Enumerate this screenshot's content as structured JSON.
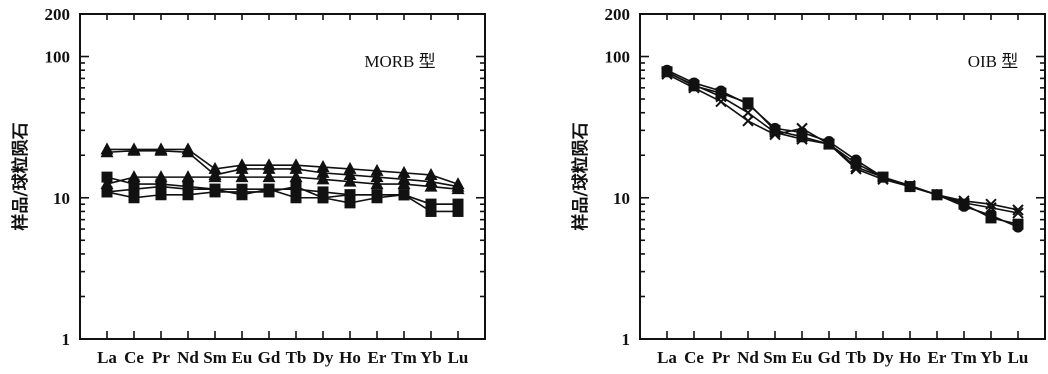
{
  "chart_data": [
    {
      "type": "line",
      "scale": "log",
      "title": "MORB 型",
      "ylabel": "样品/球粒陨石",
      "xlabel": "",
      "categories": [
        "La",
        "Ce",
        "Pr",
        "Nd",
        "Sm",
        "Eu",
        "Gd",
        "Tb",
        "Dy",
        "Ho",
        "Er",
        "Tm",
        "Yb",
        "Lu"
      ],
      "ylim": [
        1,
        200
      ],
      "yticks": [
        "1",
        "10",
        "100",
        "200"
      ],
      "series": [
        {
          "marker": "triangle",
          "values": [
            22,
            22,
            22,
            22,
            16,
            17,
            17,
            17,
            16.5,
            16,
            15.5,
            15,
            14.5,
            12.5
          ]
        },
        {
          "marker": "triangle",
          "values": [
            21,
            21.5,
            21.5,
            21,
            14.5,
            16,
            16,
            16,
            15,
            14.5,
            14,
            13.5,
            13,
            12
          ]
        },
        {
          "marker": "triangle",
          "values": [
            12.5,
            14,
            14,
            14,
            14,
            14,
            14,
            14,
            13.5,
            13,
            12.5,
            12.5,
            12,
            11.5
          ]
        },
        {
          "marker": "square",
          "values": [
            14,
            12.5,
            12.5,
            12,
            11.5,
            11.5,
            11.5,
            11.5,
            11,
            10.5,
            10.5,
            10.5,
            9,
            9
          ]
        },
        {
          "marker": "square",
          "values": [
            11,
            10,
            10.5,
            10.5,
            11,
            11,
            11,
            12,
            10,
            10.5,
            10.5,
            10.5,
            9,
            9
          ]
        },
        {
          "marker": "square",
          "values": [
            11,
            11.5,
            12,
            11.5,
            11.5,
            10.5,
            11.5,
            10,
            10,
            9.2,
            10,
            10.5,
            8,
            8
          ]
        }
      ]
    },
    {
      "type": "line",
      "scale": "log",
      "title": "OIB 型",
      "ylabel": "样品/球粒陨石",
      "xlabel": "",
      "categories": [
        "La",
        "Ce",
        "Pr",
        "Nd",
        "Sm",
        "Eu",
        "Gd",
        "Tb",
        "Dy",
        "Ho",
        "Er",
        "Tm",
        "Yb",
        "Lu"
      ],
      "ylim": [
        1,
        200
      ],
      "yticks": [
        "1",
        "10",
        "100",
        "200"
      ],
      "series": [
        {
          "marker": "circle",
          "values": [
            80,
            65,
            57,
            46,
            31,
            29,
            25,
            18.5,
            14,
            12,
            10.5,
            8.7,
            7.5,
            6.2
          ]
        },
        {
          "marker": "square",
          "values": [
            78,
            62,
            55,
            47,
            30,
            27,
            24,
            17.5,
            14,
            12,
            10.5,
            9,
            7.2,
            6.5
          ]
        },
        {
          "marker": "cross",
          "values": [
            75,
            60,
            48,
            35,
            28,
            31,
            24,
            16,
            13.5,
            12,
            10.5,
            9.5,
            9,
            8.2
          ]
        },
        {
          "marker": "cross",
          "values": [
            77,
            63,
            52,
            40,
            29,
            26,
            24,
            16.5,
            14,
            12.2,
            10.5,
            9.2,
            8.5,
            7.8
          ]
        }
      ]
    }
  ]
}
